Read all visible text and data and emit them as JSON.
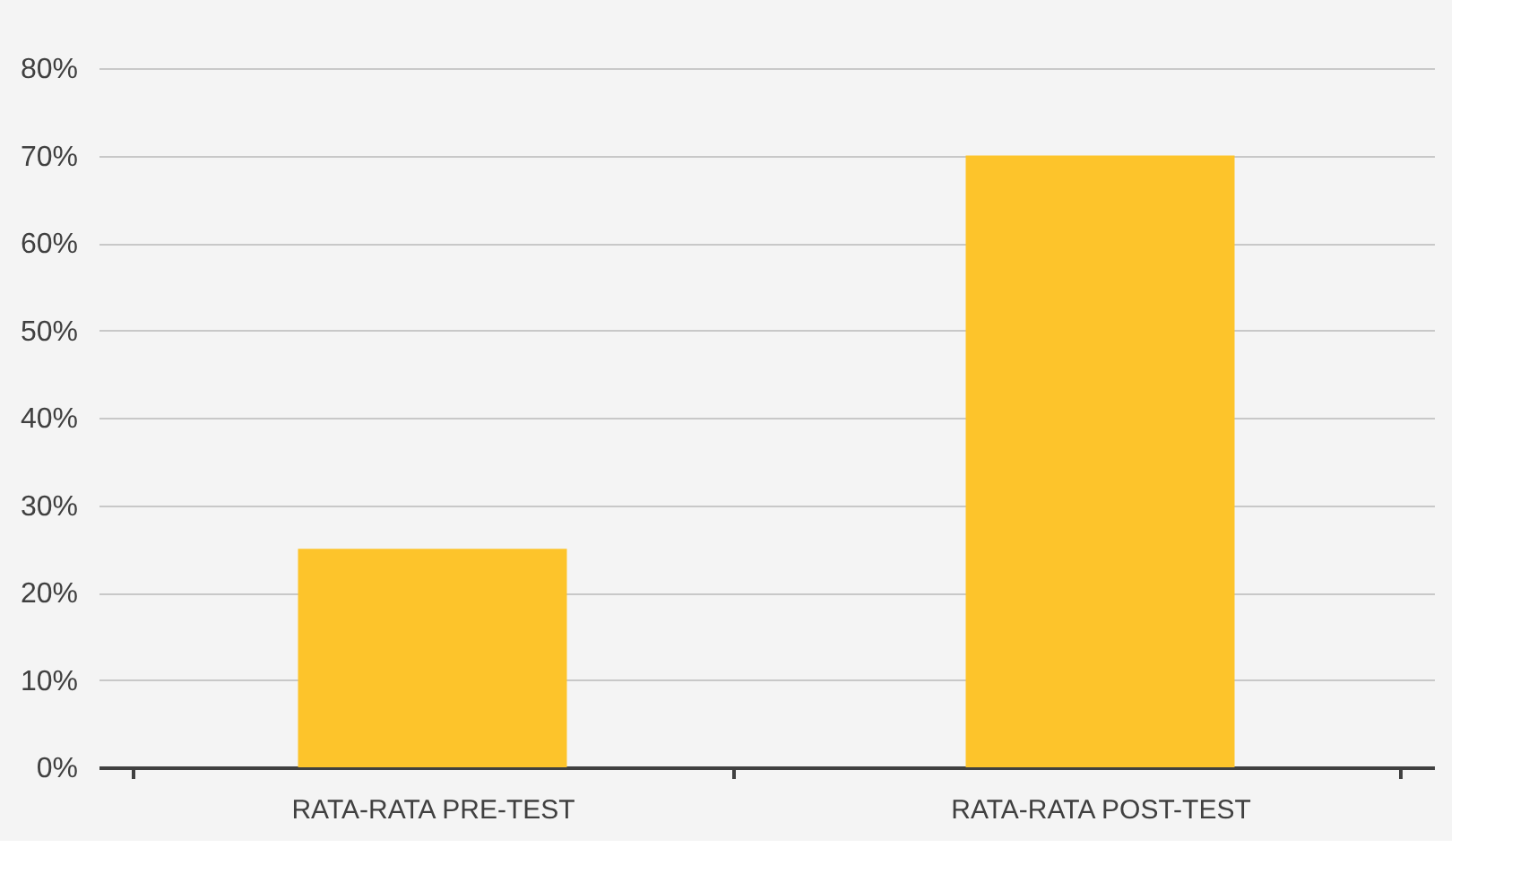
{
  "chart_data": {
    "type": "bar",
    "categories": [
      "RATA-RATA PRE-TEST",
      "RATA-RATA POST-TEST"
    ],
    "values": [
      25,
      70
    ],
    "color": "#fdc42b",
    "ylim": [
      0,
      80
    ],
    "yticks": [
      {
        "value": 0,
        "label": "0%"
      },
      {
        "value": 10,
        "label": "10%"
      },
      {
        "value": 20,
        "label": "20%"
      },
      {
        "value": 30,
        "label": "30%"
      },
      {
        "value": 40,
        "label": "40%"
      },
      {
        "value": 50,
        "label": "50%"
      },
      {
        "value": 60,
        "label": "60%"
      },
      {
        "value": 70,
        "label": "70%"
      },
      {
        "value": 80,
        "label": "80%"
      }
    ],
    "grid": "y"
  }
}
